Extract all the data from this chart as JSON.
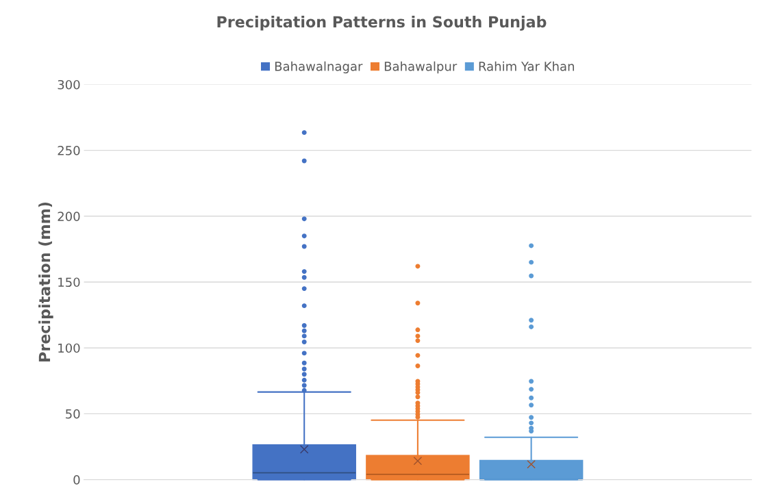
{
  "chart_data": {
    "type": "box",
    "title": "Precipitation Patterns in South Punjab",
    "ylabel": "Precipitation (mm)",
    "categories": [
      null
    ],
    "ylim": [
      0,
      300
    ],
    "yticks": [
      0,
      50,
      100,
      150,
      200,
      250,
      300
    ],
    "grid": "y",
    "legend": "top",
    "series": [
      {
        "name": "Bahawalnagar",
        "color": "#4472c4",
        "boxes": [
          {
            "low": 0,
            "q1": 0,
            "median": 5.2,
            "q3": 26.4,
            "high": 66.5,
            "mean": 23,
            "outliers": [
              263.5,
              242,
              198,
              185,
              177,
              158,
              153.5,
              145,
              132,
              117,
              113,
              109,
              104.5,
              96,
              88.5,
              84,
              80,
              75.5,
              71.5,
              67.7
            ]
          }
        ]
      },
      {
        "name": "Bahawalpur",
        "color": "#ed7d31",
        "boxes": [
          {
            "low": 0,
            "q1": 0,
            "median": 4,
            "q3": 18.4,
            "high": 45.1,
            "mean": 14.2,
            "outliers": [
              162,
              134,
              113.7,
              109,
              105.5,
              94.3,
              86.3,
              74.6,
              72.6,
              70.3,
              68.2,
              66,
              62.8,
              58.1,
              55.9,
              53.8,
              51.7,
              49.5,
              47.4
            ]
          }
        ]
      },
      {
        "name": "Rahim Yar Khan",
        "color": "#5b9bd5",
        "boxes": [
          {
            "low": 0,
            "q1": 0,
            "median": 0,
            "q3": 14.6,
            "high": 32.1,
            "mean": 11.6,
            "outliers": [
              177.6,
              165,
              154.7,
              121,
              116,
              74.6,
              68.6,
              62,
              56.6,
              47.2,
              43,
              39,
              36.8
            ]
          }
        ]
      }
    ]
  }
}
